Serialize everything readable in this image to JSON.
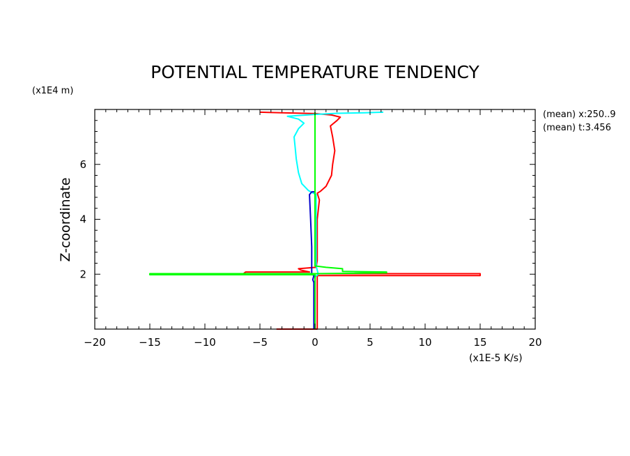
{
  "chart_data": {
    "type": "line",
    "title": "POTENTIAL TEMPERATURE TENDENCY",
    "xlabel": "(x1E-5 K/s)",
    "ylabel": "Z-coordinate",
    "yunit": "(x1E4 m)",
    "annotations": [
      "(mean) x:250..9",
      "(mean) t:3.456"
    ],
    "xlim": [
      -20,
      20
    ],
    "ylim": [
      0,
      8
    ],
    "xticks": [
      -20,
      -15,
      -10,
      -5,
      0,
      5,
      10,
      15,
      20
    ],
    "yticks": [
      2,
      4,
      6
    ],
    "grid": false,
    "series": [
      {
        "color": "#ff0000",
        "points": [
          [
            -3.5,
            0.0
          ],
          [
            0.2,
            0.0
          ],
          [
            0.2,
            1.95
          ],
          [
            15,
            1.95
          ],
          [
            15,
            2.02
          ],
          [
            -6.5,
            2.02
          ],
          [
            -6.3,
            2.08
          ],
          [
            -0.5,
            2.08
          ],
          [
            -1.3,
            2.15
          ],
          [
            -1.5,
            2.2
          ],
          [
            0.1,
            2.25
          ],
          [
            0.2,
            2.5
          ],
          [
            0.2,
            3.0
          ],
          [
            0.2,
            4.0
          ],
          [
            0.4,
            4.7
          ],
          [
            0.2,
            4.95
          ],
          [
            0.5,
            5.02
          ],
          [
            1.0,
            5.2
          ],
          [
            1.5,
            5.6
          ],
          [
            1.6,
            6.0
          ],
          [
            1.8,
            6.5
          ],
          [
            1.6,
            7.0
          ],
          [
            1.4,
            7.4
          ],
          [
            2.0,
            7.6
          ],
          [
            2.3,
            7.72
          ],
          [
            1.5,
            7.8
          ],
          [
            0.0,
            7.85
          ],
          [
            -3.0,
            7.88
          ],
          [
            -5.0,
            7.9
          ]
        ]
      },
      {
        "color": "#00ffff",
        "points": [
          [
            0.0,
            0.0
          ],
          [
            0.0,
            1.9
          ],
          [
            0.3,
            2.0
          ],
          [
            0.1,
            2.3
          ],
          [
            0.1,
            3.0
          ],
          [
            0.1,
            4.0
          ],
          [
            0.1,
            4.9
          ],
          [
            -0.6,
            5.05
          ],
          [
            -1.2,
            5.3
          ],
          [
            -1.5,
            5.7
          ],
          [
            -1.7,
            6.2
          ],
          [
            -1.8,
            6.6
          ],
          [
            -1.9,
            7.0
          ],
          [
            -1.5,
            7.3
          ],
          [
            -1.0,
            7.5
          ],
          [
            -1.5,
            7.65
          ],
          [
            -2.5,
            7.75
          ],
          [
            0.0,
            7.82
          ],
          [
            2.0,
            7.86
          ],
          [
            4.5,
            7.88
          ],
          [
            6.2,
            7.9
          ]
        ]
      },
      {
        "color": "#0000cc",
        "points": [
          [
            -0.1,
            0.0
          ],
          [
            -0.1,
            1.7
          ],
          [
            -0.2,
            1.8
          ],
          [
            -0.1,
            1.95
          ],
          [
            -0.3,
            2.0
          ],
          [
            -0.3,
            3.0
          ],
          [
            -0.4,
            4.0
          ],
          [
            -0.5,
            4.9
          ],
          [
            -0.3,
            5.0
          ],
          [
            0.0,
            5.0
          ]
        ]
      },
      {
        "color": "#00ff00",
        "points": [
          [
            0.0,
            0.0
          ],
          [
            0.0,
            1.98
          ],
          [
            -15,
            1.98
          ],
          [
            -15,
            2.02
          ],
          [
            0.0,
            2.02
          ],
          [
            6.5,
            2.05
          ],
          [
            6.5,
            2.08
          ],
          [
            2.5,
            2.1
          ],
          [
            2.5,
            2.2
          ],
          [
            1.0,
            2.25
          ],
          [
            0.0,
            2.3
          ],
          [
            0.0,
            7.9
          ]
        ]
      }
    ]
  }
}
